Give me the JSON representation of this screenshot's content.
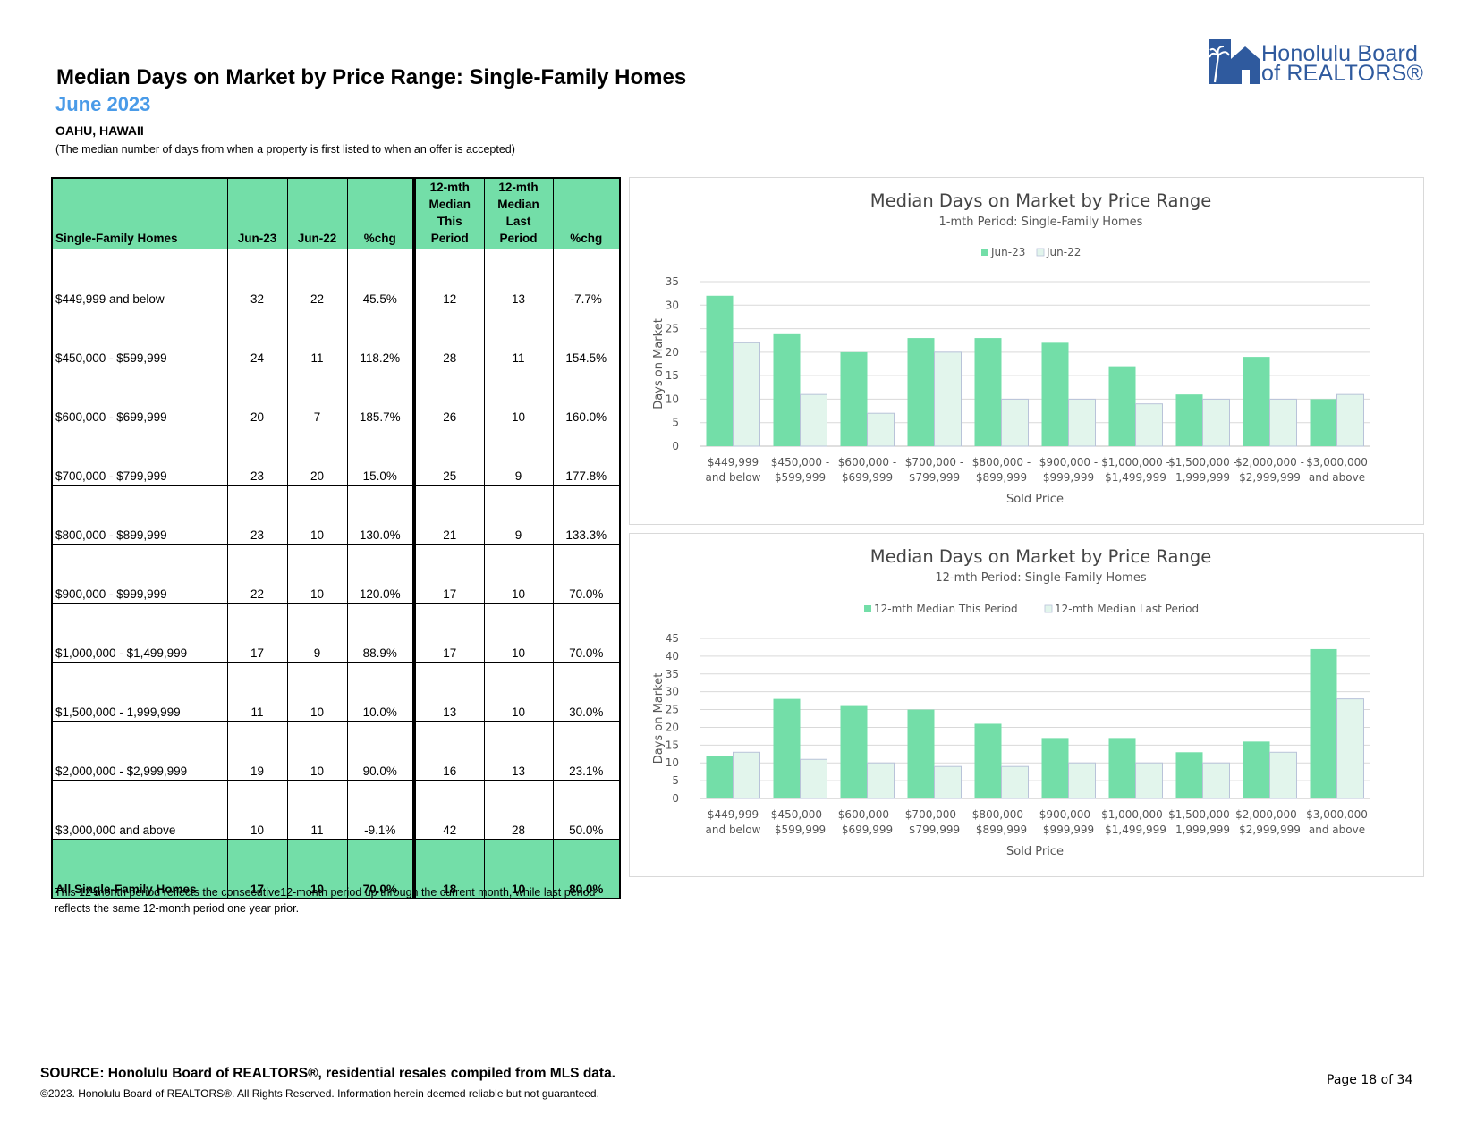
{
  "header": {
    "title": "Median Days on Market by Price Range: Single-Family Homes",
    "subtitle": "June 2023",
    "location": "OAHU, HAWAII",
    "description": "(The median number of days from when a property is first listed to when an offer is accepted)"
  },
  "logo": {
    "line1": "Honolulu Board",
    "line2": "of REALTORS®"
  },
  "table": {
    "columns": [
      "Single-Family Homes",
      "Jun-23",
      "Jun-22",
      "%chg",
      "12-mth Median This Period",
      "12-mth Median Last Period",
      "%chg"
    ],
    "rows": [
      {
        "range": "$449,999 and below",
        "jun23": "32",
        "jun22": "22",
        "chg": "45.5%",
        "this12": "12",
        "last12": "13",
        "chg12": "-7.7%"
      },
      {
        "range": "$450,000 - $599,999",
        "jun23": "24",
        "jun22": "11",
        "chg": "118.2%",
        "this12": "28",
        "last12": "11",
        "chg12": "154.5%"
      },
      {
        "range": "$600,000 - $699,999",
        "jun23": "20",
        "jun22": "7",
        "chg": "185.7%",
        "this12": "26",
        "last12": "10",
        "chg12": "160.0%"
      },
      {
        "range": "$700,000 - $799,999",
        "jun23": "23",
        "jun22": "20",
        "chg": "15.0%",
        "this12": "25",
        "last12": "9",
        "chg12": "177.8%"
      },
      {
        "range": "$800,000 - $899,999",
        "jun23": "23",
        "jun22": "10",
        "chg": "130.0%",
        "this12": "21",
        "last12": "9",
        "chg12": "133.3%"
      },
      {
        "range": "$900,000 - $999,999",
        "jun23": "22",
        "jun22": "10",
        "chg": "120.0%",
        "this12": "17",
        "last12": "10",
        "chg12": "70.0%"
      },
      {
        "range": "$1,000,000 - $1,499,999",
        "jun23": "17",
        "jun22": "9",
        "chg": "88.9%",
        "this12": "17",
        "last12": "10",
        "chg12": "70.0%"
      },
      {
        "range": "$1,500,000 - 1,999,999",
        "jun23": "11",
        "jun22": "10",
        "chg": "10.0%",
        "this12": "13",
        "last12": "10",
        "chg12": "30.0%"
      },
      {
        "range": "$2,000,000 - $2,999,999",
        "jun23": "19",
        "jun22": "10",
        "chg": "90.0%",
        "this12": "16",
        "last12": "13",
        "chg12": "23.1%"
      },
      {
        "range": "$3,000,000 and above",
        "jun23": "10",
        "jun22": "11",
        "chg": "-9.1%",
        "this12": "42",
        "last12": "28",
        "chg12": "50.0%"
      }
    ],
    "total": {
      "range": "All Single-Family Homes",
      "jun23": "17",
      "jun22": "10",
      "chg": "70.0%",
      "this12": "18",
      "last12": "10",
      "chg12": "80.0%"
    }
  },
  "table_note": "This 12-month period reflects the consecutive12-month period up through the current month, while last period reflects the same 12-month period one year prior.",
  "colors": {
    "primary": "#73dea8",
    "secondary": "#e2f5ec",
    "secondary_border": "#b9c3d9",
    "title_blue": "#4a9be8",
    "logo_blue": "#2f5a9e"
  },
  "chart_data": [
    {
      "type": "bar",
      "title": "Median Days on Market by Price Range",
      "subtitle": "1-mth Period: Single-Family Homes",
      "xlabel": "Sold Price",
      "ylabel": "Days on Market",
      "ylim": [
        0,
        35
      ],
      "yticks": [
        0,
        5,
        10,
        15,
        20,
        25,
        30,
        35
      ],
      "legend_position": "top",
      "categories": [
        [
          "$449,999",
          "and below"
        ],
        [
          "$450,000 -",
          "$599,999"
        ],
        [
          "$600,000 -",
          "$699,999"
        ],
        [
          "$700,000 -",
          "$799,999"
        ],
        [
          "$800,000 -",
          "$899,999"
        ],
        [
          "$900,000 -",
          "$999,999"
        ],
        [
          "$1,000,000 -",
          "$1,499,999"
        ],
        [
          "$1,500,000 -",
          "1,999,999"
        ],
        [
          "$2,000,000 -",
          "$2,999,999"
        ],
        [
          "$3,000,000",
          "and above"
        ]
      ],
      "series": [
        {
          "name": "Jun-23",
          "values": [
            32,
            24,
            20,
            23,
            23,
            22,
            17,
            11,
            19,
            10
          ]
        },
        {
          "name": "Jun-22",
          "values": [
            22,
            11,
            7,
            20,
            10,
            10,
            9,
            10,
            10,
            11
          ]
        }
      ]
    },
    {
      "type": "bar",
      "title": "Median Days on Market by Price Range",
      "subtitle": "12-mth Period: Single-Family Homes",
      "xlabel": "Sold Price",
      "ylabel": "Days on Market",
      "ylim": [
        0,
        45
      ],
      "yticks": [
        0,
        5,
        10,
        15,
        20,
        25,
        30,
        35,
        40,
        45
      ],
      "legend_position": "top",
      "categories": [
        [
          "$449,999",
          "and below"
        ],
        [
          "$450,000 -",
          "$599,999"
        ],
        [
          "$600,000 -",
          "$699,999"
        ],
        [
          "$700,000 -",
          "$799,999"
        ],
        [
          "$800,000 -",
          "$899,999"
        ],
        [
          "$900,000 -",
          "$999,999"
        ],
        [
          "$1,000,000 -",
          "$1,499,999"
        ],
        [
          "$1,500,000 -",
          "1,999,999"
        ],
        [
          "$2,000,000 -",
          "$2,999,999"
        ],
        [
          "$3,000,000",
          "and above"
        ]
      ],
      "series": [
        {
          "name": "12-mth Median This Period",
          "values": [
            12,
            28,
            26,
            25,
            21,
            17,
            17,
            13,
            16,
            42
          ]
        },
        {
          "name": "12-mth Median Last Period",
          "values": [
            13,
            11,
            10,
            9,
            9,
            10,
            10,
            10,
            13,
            28
          ]
        }
      ]
    }
  ],
  "footer": {
    "source": "SOURCE: Honolulu Board of REALTORS®, residential resales compiled from MLS data.",
    "copyright": "©2023. Honolulu Board of REALTORS®. All Rights Reserved. Information herein deemed reliable but not guaranteed.",
    "page": "Page 18 of 34"
  }
}
